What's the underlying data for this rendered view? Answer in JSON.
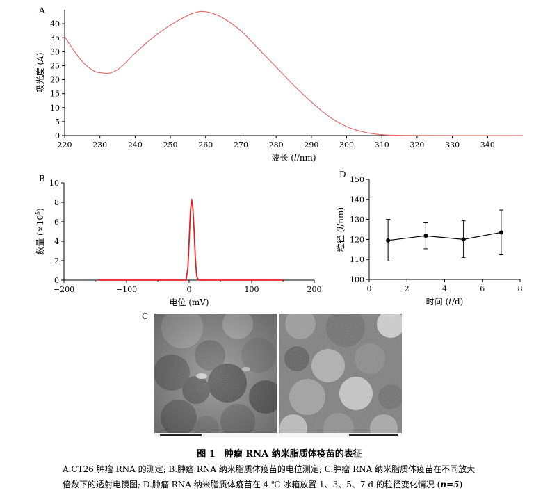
{
  "panels": {
    "a": {
      "letter": "A",
      "chart_data": {
        "type": "line",
        "xlabel_prefix": "波长 (",
        "xlabel_var": "l",
        "xlabel_suffix": "/nm)",
        "ylabel_prefix": "吸光度 (",
        "ylabel_var": "A",
        "ylabel_suffix": ")",
        "xlim": [
          220,
          350
        ],
        "ylim": [
          0,
          45
        ],
        "xticks": [
          220,
          230,
          240,
          250,
          260,
          270,
          280,
          290,
          300,
          310,
          320,
          330,
          340
        ],
        "yticks": [
          0,
          5,
          10,
          15,
          20,
          25,
          30,
          35,
          40
        ],
        "color": "#e06c6c",
        "x": [
          220,
          222,
          225,
          228,
          230,
          233,
          236,
          240,
          245,
          250,
          255,
          258,
          260,
          262,
          265,
          270,
          275,
          280,
          285,
          290,
          295,
          300,
          305,
          310,
          315,
          320,
          330,
          340,
          350
        ],
        "y": [
          35.5,
          31.5,
          26.5,
          23.3,
          22.5,
          22.4,
          24.5,
          29.5,
          35,
          39.5,
          43,
          44.3,
          44.3,
          43.7,
          42,
          37.5,
          31,
          24.5,
          18,
          12,
          6.8,
          3.2,
          1.2,
          0.3,
          0.1,
          0.05,
          0.02,
          0.01,
          0.01
        ]
      }
    },
    "b": {
      "letter": "B",
      "chart_data": {
        "type": "line",
        "xlabel": "电位 (mV)",
        "ylabel_prefix": "数量 (×10",
        "ylabel_sup": "5",
        "ylabel_suffix": ")",
        "xlim": [
          -200,
          200
        ],
        "ylim": [
          0,
          10
        ],
        "xticks": [
          -200,
          -100,
          0,
          100,
          200
        ],
        "xtick_labels": [
          "−200",
          "−100",
          "0",
          "100",
          "200"
        ],
        "yticks": [
          0,
          2,
          4,
          6,
          8,
          10
        ],
        "color": "#e02020",
        "x": [
          -145,
          -5,
          -2,
          0,
          2,
          4,
          6,
          8,
          10,
          12,
          14,
          16,
          150
        ],
        "y": [
          0,
          0,
          1.2,
          4,
          7,
          8.3,
          7.4,
          5,
          2.2,
          0.5,
          0.05,
          0,
          0
        ]
      }
    },
    "d": {
      "letter": "D",
      "chart_data": {
        "type": "line",
        "xlabel_prefix": "时间 (",
        "xlabel_var": "t",
        "xlabel_suffix": "/d)",
        "ylabel_prefix": "粒径 (",
        "ylabel_var": "l",
        "ylabel_suffix": "/nm)",
        "xlim": [
          0,
          8
        ],
        "ylim": [
          100,
          150
        ],
        "xticks": [
          0,
          2,
          4,
          6,
          8
        ],
        "yticks": [
          100,
          110,
          120,
          130,
          140,
          150
        ],
        "x": [
          1,
          3,
          5,
          7
        ],
        "y": [
          119.5,
          121.8,
          120,
          123.5
        ],
        "err_low": [
          109.2,
          115.3,
          111,
          112.3
        ],
        "err_high": [
          130,
          128.3,
          129.3,
          134.7
        ]
      }
    },
    "c": {
      "letter": "C"
    }
  },
  "caption": {
    "title": "图 1　肿瘤 RNA 纳米脂质体疫苗的表征",
    "line1": "A.CT26 肿瘤 RNA 的测定; B.肿瘤 RNA 纳米脂质体疫苗的电位测定; C.肿瘤 RNA 纳米脂质体疫苗在不同放大",
    "line2_prefix": "倍数下的透射电镜图; D.肿瘤 RNA 纳米脂质体疫苗在 4 ℃ 冰箱放置 1、3、5、7 d 的粒径变化情况 (",
    "line2_n": "n=5",
    "line2_suffix": ")"
  }
}
